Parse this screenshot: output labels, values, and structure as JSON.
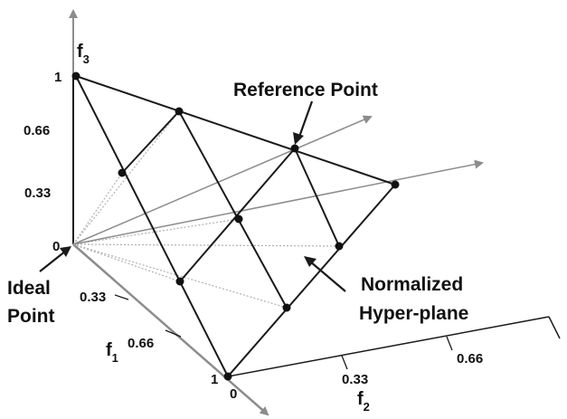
{
  "diagram": {
    "labels": {
      "f1": "f",
      "f1_sub": "1",
      "f2": "f",
      "f2_sub": "2",
      "f3": "f",
      "f3_sub": "3",
      "reference_point": "Reference Point",
      "ideal_point_line1": "Ideal",
      "ideal_point_line2": "Point",
      "hyperplane_line1": "Normalized",
      "hyperplane_line2": "Hyper-plane"
    },
    "ticks": {
      "f3_axis": [
        "1",
        "0.66",
        "0.33",
        "0"
      ],
      "f1_axis": [
        "0.33",
        "0.66",
        "1"
      ],
      "f2_axis": [
        "0",
        "0.33",
        "0.66"
      ]
    },
    "colors": {
      "lines": "#1a1a1a",
      "arrows": "#8c8c8c",
      "dotted": "#b0b0b0"
    }
  }
}
